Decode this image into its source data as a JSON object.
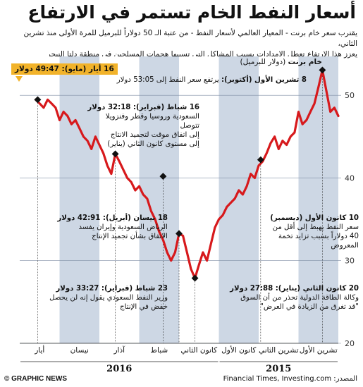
{
  "title": "أسعار النفط الخام تستمر في الارتفاع",
  "subtitle_lines": [
    "يقترب سعر خام برنت - المعيار العالمي لأسعار النفط - من عتبة الـ 50 دولاراً للبرميل للمرة الأولى منذ تشرين الثاني،",
    "يعزز هذا الارتفاع تعطل الإمدادات بسبب المشاكل التي تسببها هجمات المسلحين في منطقة دلتا النيجر"
  ],
  "chart_data": {
    "type": "line",
    "title": "خام برنت",
    "ylabel": "(دولار للبرميل)",
    "ylim": [
      20,
      53
    ],
    "yticks": [
      20,
      30,
      40,
      50
    ],
    "months": [
      "تشرين الأول",
      "تشرين الثاني",
      "كانون الأول",
      "كانون الثاني",
      "شباط",
      "آذار",
      "نيسان",
      "أيار"
    ],
    "years": [
      {
        "label": "2015",
        "months": 3
      },
      {
        "label": "2016",
        "months": 5
      }
    ],
    "shading": [
      "#cdd7e4",
      "#ffffff",
      "#cdd7e4",
      "#ffffff",
      "#cdd7e4",
      "#ffffff",
      "#cdd7e4",
      "#ffffff"
    ],
    "series_color": "#d7191c",
    "series": [
      {
        "name": "خام برنت",
        "x": [
          0.0,
          0.1,
          0.2,
          0.3,
          0.4,
          0.5,
          0.6,
          0.7,
          0.8,
          0.9,
          1.0,
          1.1,
          1.2,
          1.3,
          1.4,
          1.5,
          1.6,
          1.7,
          1.8,
          1.9,
          2.0,
          2.1,
          2.2,
          2.3,
          2.4,
          2.5,
          2.6,
          2.7,
          2.8,
          2.9,
          3.0,
          3.1,
          3.2,
          3.3,
          3.4,
          3.5,
          3.6,
          3.7,
          3.8,
          3.9,
          4.0,
          4.1,
          4.2,
          4.3,
          4.4,
          4.5,
          4.6,
          4.7,
          4.8,
          4.9,
          5.0,
          5.1,
          5.2,
          5.3,
          5.4,
          5.5,
          5.6,
          5.7,
          5.8,
          5.9,
          6.0,
          6.1,
          6.2,
          6.3,
          6.4,
          6.5,
          6.6,
          6.7,
          6.8,
          6.9,
          7.0,
          7.1,
          7.2,
          7.3,
          7.4,
          7.5,
          7.6
        ],
        "y": [
          47.5,
          48.5,
          48.0,
          50.5,
          53.05,
          51.0,
          49.0,
          48.0,
          47.0,
          46.5,
          48.0,
          45.5,
          45.0,
          44.0,
          44.5,
          43.5,
          45.0,
          44.2,
          43.0,
          42.0,
          41.5,
          40.0,
          40.5,
          39.0,
          38.0,
          38.5,
          37.5,
          37.0,
          36.5,
          35.5,
          35.0,
          34.0,
          32.0,
          30.0,
          31.0,
          29.5,
          27.88,
          29.0,
          31.0,
          33.0,
          33.27,
          31.0,
          30.0,
          31.0,
          32.5,
          33.5,
          35.0,
          36.0,
          37.5,
          38.0,
          39.0,
          38.5,
          39.5,
          40.0,
          41.0,
          42.0,
          42.91,
          40.5,
          41.5,
          43.0,
          44.0,
          45.0,
          43.5,
          44.5,
          45.0,
          46.0,
          47.0,
          46.5,
          47.5,
          48.0,
          47.0,
          48.5,
          49.0,
          49.47,
          48.5,
          49.0,
          49.47
        ]
      }
    ],
    "markers": [
      {
        "x": 0.4,
        "y": 53.05
      },
      {
        "x": 1.95,
        "y": 42.2
      },
      {
        "x": 3.6,
        "y": 27.88
      },
      {
        "x": 4.0,
        "y": 33.27
      },
      {
        "x": 4.4,
        "y": 40.2
      },
      {
        "x": 5.6,
        "y": 42.91
      },
      {
        "x": 7.55,
        "y": 49.47
      }
    ]
  },
  "annotations": {
    "oct8": {
      "head": "8 تشرين الأول (أكتوبر):",
      "body": "يرتفع سعر النفط إلى 53:05 دولار"
    },
    "feb16": {
      "head": "16 شباط (فبراير): 32:18 دولار",
      "body": [
        "السعودية وروسيا وقطر وفنزويلا تتوصل",
        "إلى اتفاق موقت لتجميد الانتاج",
        "إلى مستوى كانون الثاني (يناير)"
      ]
    },
    "apr18": {
      "head": "18 نيسان (أبريل): 42:91 دولار",
      "body": [
        "الرياض السعودية وإيران يفسد",
        "الاتفاق بشأن تجميد الإنتاج"
      ]
    },
    "feb23": {
      "head": "23 شباط (فبراير): 33:27 دولار",
      "body": [
        "وزير النفط السعودي يقول إنه لن يحصل",
        "خفض في الإنتاج"
      ]
    },
    "dec10": {
      "head": "10 كانون الأول (ديسمبر)",
      "body": [
        "سعر النفط يهبط إلى أقل من",
        "40 دولاراً بسبب تزايد تخمة",
        "المعروض"
      ]
    },
    "jan20": {
      "head": "20 كانون الثاني (يناير): 27:88 دولار",
      "body": [
        "وكالة الطاقة الدولية تحذر من أن السوق",
        "\"قد تغرق من الزيادة في العرض\""
      ]
    },
    "may16": "16 أيار (مايو): 49:47 دولار"
  },
  "footer": {
    "brand": "© GRAPHIC NEWS",
    "source": "المصدر: Financial Times, Investing.com"
  }
}
